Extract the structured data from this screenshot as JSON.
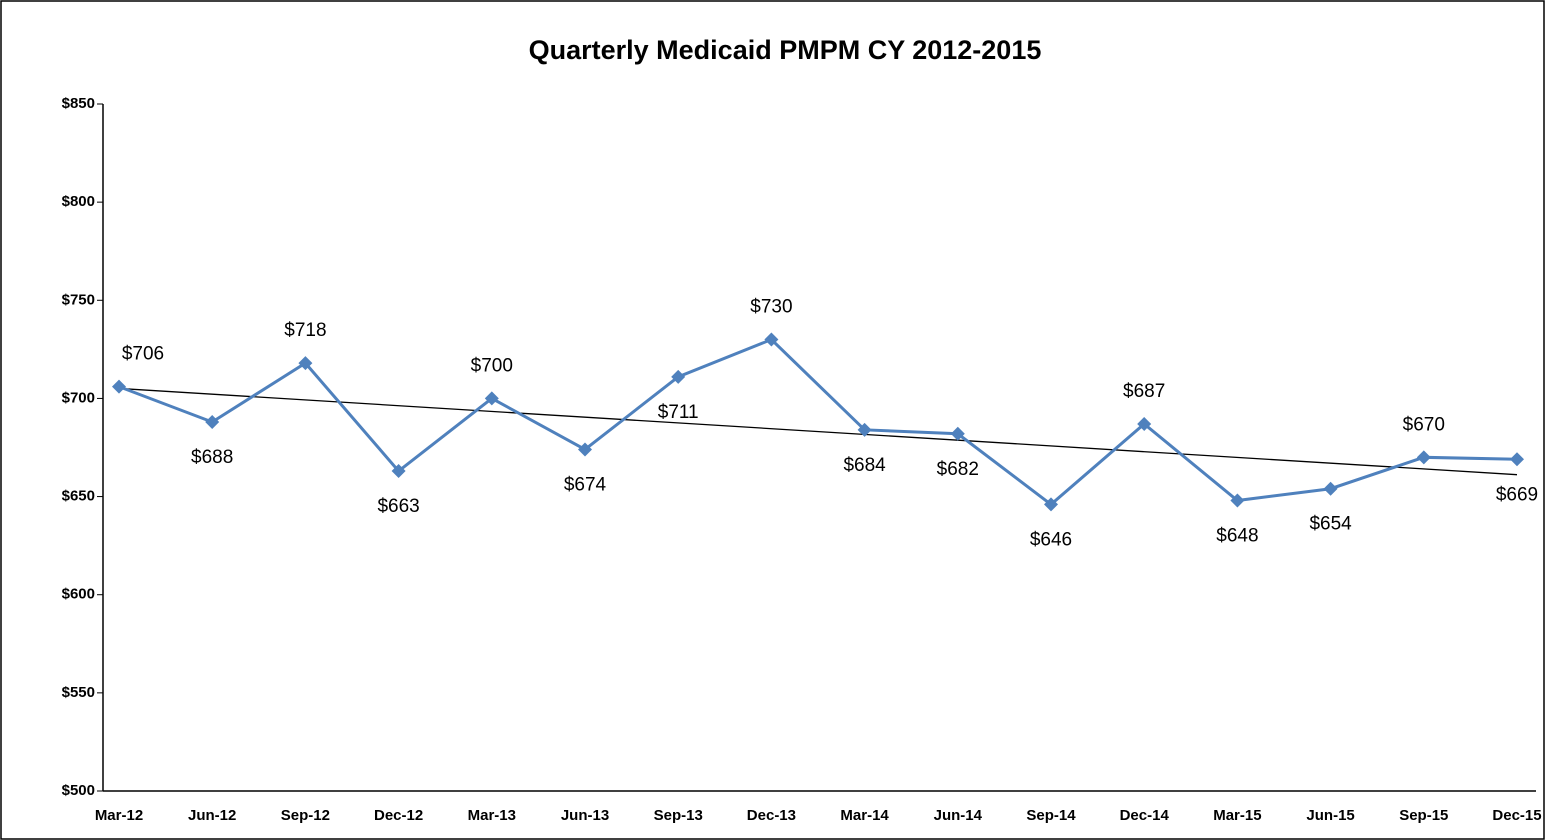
{
  "chart_data": {
    "type": "line",
    "title": "Quarterly Medicaid PMPM CY 2012-2015",
    "categories": [
      "Mar-12",
      "Jun-12",
      "Sep-12",
      "Dec-12",
      "Mar-13",
      "Jun-13",
      "Sep-13",
      "Dec-13",
      "Mar-14",
      "Jun-14",
      "Sep-14",
      "Dec-14",
      "Mar-15",
      "Jun-15",
      "Sep-15",
      "Dec-15"
    ],
    "series": [
      {
        "name": "PMPM",
        "color": "#4f81bd",
        "values": [
          706,
          688,
          718,
          663,
          700,
          674,
          711,
          730,
          684,
          682,
          646,
          687,
          648,
          654,
          670,
          669
        ],
        "value_labels": [
          "$706",
          "$688",
          "$718",
          "$663",
          "$700",
          "$674",
          "$711",
          "$730",
          "$684",
          "$682",
          "$646",
          "$687",
          "$648",
          "$654",
          "$670",
          "$669"
        ]
      }
    ],
    "trendline": "linear",
    "ylim": [
      500,
      850
    ],
    "yticks": [
      {
        "value": 500,
        "label": "$500"
      },
      {
        "value": 550,
        "label": "$550"
      },
      {
        "value": 600,
        "label": "$600"
      },
      {
        "value": 650,
        "label": "$650"
      },
      {
        "value": 700,
        "label": "$700"
      },
      {
        "value": 750,
        "label": "$750"
      },
      {
        "value": 800,
        "label": "$800"
      },
      {
        "value": 850,
        "label": "$850"
      }
    ],
    "grid": false
  }
}
